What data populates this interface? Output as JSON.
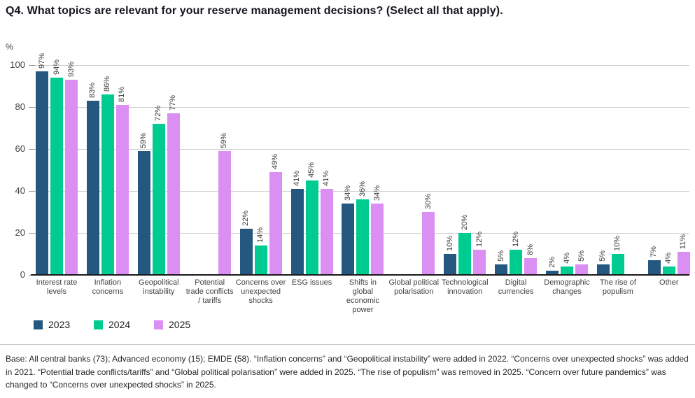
{
  "title": "Q4. What topics are relevant for your reserve management decisions? (Select all that apply).",
  "chart_data": {
    "type": "bar",
    "unit_label": "%",
    "title": "Q4. What topics are relevant for your reserve management decisions? (Select all that apply).",
    "categories": [
      "Interest rate\nlevels",
      "Inflation\nconcerns",
      "Geopolitical\ninstability",
      "Potential\ntrade conflicts\n/ tariffs",
      "Concerns over\nunexpected\nshocks",
      "ESG issues",
      "Shifts in\nglobal\neconomic\npower",
      "Global political\npolarisation",
      "Technological\ninnovation",
      "Digital\ncurrencies",
      "Demographic\nchanges",
      "The rise of\npopulism",
      "Other"
    ],
    "series": [
      {
        "name": "2023",
        "color": "#255880",
        "values": [
          97,
          83,
          59,
          null,
          22,
          41,
          34,
          null,
          10,
          5,
          2,
          5,
          7
        ]
      },
      {
        "name": "2024",
        "color": "#00CC92",
        "values": [
          94,
          86,
          72,
          null,
          14,
          45,
          36,
          null,
          20,
          12,
          4,
          10,
          4
        ]
      },
      {
        "name": "2025",
        "color": "#DB8FF3",
        "values": [
          93,
          81,
          77,
          59,
          49,
          41,
          34,
          30,
          12,
          8,
          5,
          null,
          11
        ]
      }
    ],
    "ylim": [
      0,
      100
    ],
    "yticks": [
      0,
      20,
      40,
      60,
      80,
      100
    ],
    "grid": true,
    "legend_position": "bottom-left",
    "value_label_format": "{v}%"
  },
  "footnote": "Base: All central banks (73); Advanced economy (15); EMDE (58). “Inflation concerns” and “Geopolitical instability” were added in 2022. “Concerns over unexpected shocks” was added in 2021. “Potential trade conflicts/tariffs” and “Global political polarisation” were added in 2025. “The rise of populism” was removed in 2025. “Concern over future pandemics” was changed to “Concerns over unexpected shocks” in 2025."
}
